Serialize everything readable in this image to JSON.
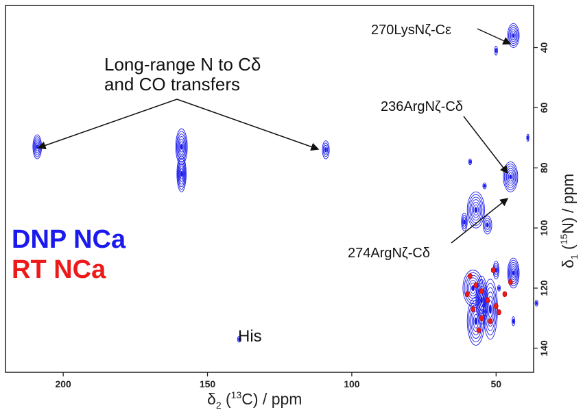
{
  "chart_data": {
    "type": "contour",
    "title": "",
    "xlabel": {
      "prefix": "δ",
      "sub": "2",
      "rest": " (",
      "sup": "13",
      "unit": "C) / ppm"
    },
    "ylabel": {
      "prefix": "δ",
      "sub": "1",
      "rest": " (",
      "sup": "15",
      "unit": "N) / ppm"
    },
    "xlim": [
      220,
      37
    ],
    "ylim": [
      26,
      148
    ],
    "x_ticks": [
      200,
      150,
      100,
      50
    ],
    "y_ticks": [
      40,
      60,
      80,
      100,
      120,
      140
    ],
    "legend": [
      {
        "name": "DNP NCa",
        "color": "#1a1aee"
      },
      {
        "name": "RT NCa",
        "color": "#ee1a1a"
      }
    ],
    "annotations": [
      {
        "label_lines": [
          "Long-range N to Cδ",
          "and CO transfers"
        ],
        "targets": [
          [
            209,
            73
          ],
          [
            109,
            73
          ]
        ]
      },
      {
        "label_lines": [
          "270LysNζ-Cε"
        ],
        "targets": [
          [
            44,
            36
          ]
        ]
      },
      {
        "label_lines": [
          "236ArgNζ-Cδ"
        ],
        "targets": [
          [
            45,
            80
          ]
        ]
      },
      {
        "label_lines": [
          "274ArgNζ-Cδ"
        ],
        "targets": [
          [
            45,
            87
          ]
        ]
      },
      {
        "label_lines": [
          "His"
        ],
        "targets": []
      }
    ],
    "dnp_peaks": [
      {
        "x": 209,
        "y": 73,
        "rx": 1.5,
        "ry": 4
      },
      {
        "x": 159,
        "y": 73,
        "rx": 2,
        "ry": 6
      },
      {
        "x": 159,
        "y": 82,
        "rx": 1.6,
        "ry": 6
      },
      {
        "x": 109,
        "y": 74,
        "rx": 1.2,
        "ry": 3
      },
      {
        "x": 139,
        "y": 137,
        "rx": 0.6,
        "ry": 1
      },
      {
        "x": 44,
        "y": 36,
        "rx": 2,
        "ry": 4
      },
      {
        "x": 45,
        "y": 83,
        "rx": 2.5,
        "ry": 5
      },
      {
        "x": 50,
        "y": 41,
        "rx": 0.5,
        "ry": 1.5
      },
      {
        "x": 39,
        "y": 70,
        "rx": 0.4,
        "ry": 1.2
      },
      {
        "x": 59,
        "y": 78,
        "rx": 0.5,
        "ry": 1
      },
      {
        "x": 57,
        "y": 94,
        "rx": 3,
        "ry": 6
      },
      {
        "x": 61,
        "y": 98,
        "rx": 1,
        "ry": 3
      },
      {
        "x": 53,
        "y": 99,
        "rx": 1.5,
        "ry": 3
      },
      {
        "x": 54,
        "y": 86,
        "rx": 0.6,
        "ry": 1
      },
      {
        "x": 58,
        "y": 120,
        "rx": 3.5,
        "ry": 6
      },
      {
        "x": 57,
        "y": 131,
        "rx": 3,
        "ry": 8
      },
      {
        "x": 52,
        "y": 127,
        "rx": 2.5,
        "ry": 10
      },
      {
        "x": 55,
        "y": 124,
        "rx": 2,
        "ry": 8
      },
      {
        "x": 50,
        "y": 114,
        "rx": 1,
        "ry": 3
      },
      {
        "x": 44,
        "y": 115,
        "rx": 2,
        "ry": 5
      },
      {
        "x": 36,
        "y": 125,
        "rx": 0.5,
        "ry": 1
      },
      {
        "x": 44,
        "y": 131,
        "rx": 0.5,
        "ry": 1.5
      },
      {
        "x": 49,
        "y": 120,
        "rx": 0.5,
        "ry": 1
      }
    ],
    "rt_peaks": [
      {
        "x": 59,
        "y": 116
      },
      {
        "x": 57,
        "y": 119
      },
      {
        "x": 55,
        "y": 121
      },
      {
        "x": 53,
        "y": 124
      },
      {
        "x": 58,
        "y": 127
      },
      {
        "x": 55,
        "y": 130
      },
      {
        "x": 52,
        "y": 131
      },
      {
        "x": 50,
        "y": 126
      },
      {
        "x": 56,
        "y": 134
      },
      {
        "x": 60,
        "y": 122
      },
      {
        "x": 45,
        "y": 118
      },
      {
        "x": 51,
        "y": 114
      },
      {
        "x": 49,
        "y": 128
      },
      {
        "x": 47,
        "y": 122
      }
    ]
  }
}
